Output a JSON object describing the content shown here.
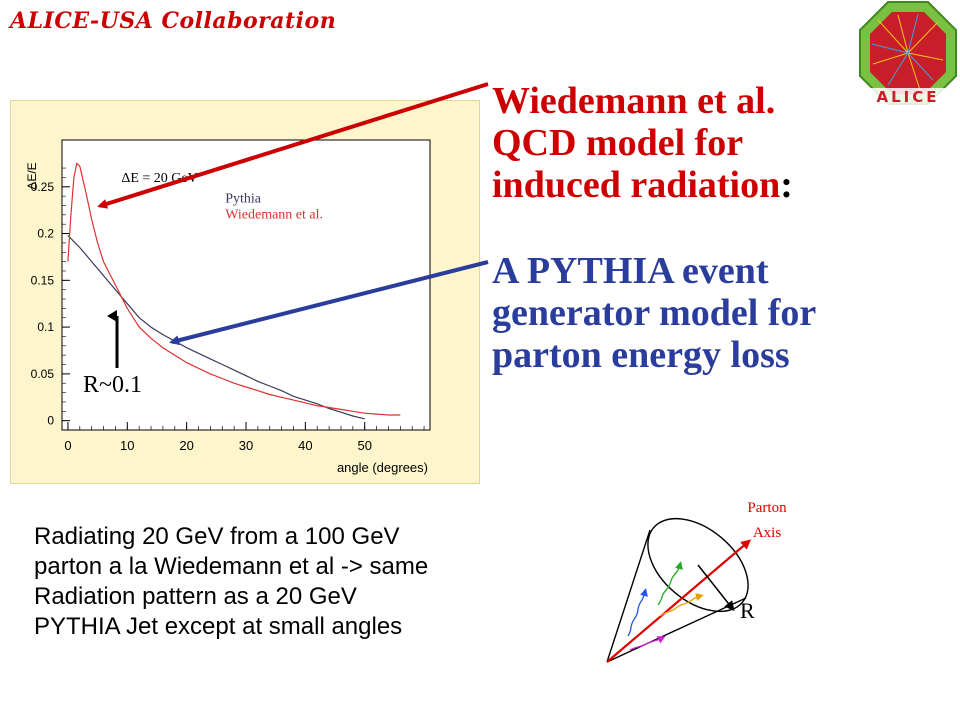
{
  "header": {
    "collaboration": "ALICE-USA Collaboration",
    "logo_text": "ALICE",
    "logo_icon": "alice-logo-icon"
  },
  "right_text": {
    "model1_lines": [
      "Wiedemann et al.",
      "QCD model for",
      "induced radiation"
    ],
    "model1_colon": ":",
    "model2_lines": [
      "A PYTHIA event",
      "generator model for",
      "parton energy loss"
    ]
  },
  "bottom_text": {
    "lines": [
      "Radiating 20 GeV from a 100 GeV",
      "parton a la Wiedemann  et al -> same",
      "Radiation pattern as a  20 GeV",
      "PYTHIA Jet except at small angles"
    ]
  },
  "cone": {
    "axis_label_lines": [
      "Parton",
      "Axis"
    ],
    "radius_label": "R"
  },
  "annotation": {
    "r_label": "R~0.1"
  },
  "colors": {
    "red": "#cc0000",
    "blue": "#2a3c9c",
    "pythia": "#3a3a5a",
    "wiedemann": "#e03030",
    "frame": "#fdf6cc"
  },
  "chart_data": {
    "type": "line",
    "title": "",
    "xlabel": "angle (degrees)",
    "ylabel": "ΔE/E",
    "annotation": "ΔE = 20 GeV",
    "xlim": [
      -1,
      61
    ],
    "ylim": [
      -0.01,
      0.3
    ],
    "x_ticks": [
      0,
      10,
      20,
      30,
      40,
      50
    ],
    "y_ticks": [
      0,
      0.05,
      0.1,
      0.15,
      0.2,
      0.25
    ],
    "legend_placement": "upper-right",
    "series": [
      {
        "name": "Pythia",
        "color": "#3a3a5a",
        "x": [
          0,
          2,
          4,
          6,
          8,
          10,
          12,
          14,
          16,
          18,
          20,
          22,
          24,
          26,
          28,
          30,
          32,
          34,
          36,
          38,
          40,
          42,
          44,
          46,
          48,
          50
        ],
        "y": [
          0.198,
          0.185,
          0.17,
          0.155,
          0.14,
          0.125,
          0.11,
          0.1,
          0.092,
          0.085,
          0.078,
          0.072,
          0.066,
          0.06,
          0.054,
          0.048,
          0.042,
          0.037,
          0.032,
          0.026,
          0.022,
          0.018,
          0.013,
          0.009,
          0.005,
          0.002
        ]
      },
      {
        "name": "Wiedemann et al.",
        "color": "#e03030",
        "x": [
          0,
          0.5,
          1,
          1.5,
          2,
          3,
          4,
          5,
          6,
          8,
          10,
          12,
          14,
          16,
          18,
          20,
          22,
          24,
          26,
          28,
          30,
          32,
          34,
          36,
          38,
          40,
          42,
          44,
          46,
          48,
          50,
          52,
          54,
          56
        ],
        "y": [
          0.17,
          0.22,
          0.26,
          0.275,
          0.272,
          0.245,
          0.215,
          0.19,
          0.17,
          0.145,
          0.12,
          0.1,
          0.088,
          0.078,
          0.07,
          0.062,
          0.056,
          0.05,
          0.045,
          0.04,
          0.036,
          0.032,
          0.028,
          0.025,
          0.022,
          0.019,
          0.016,
          0.014,
          0.012,
          0.01,
          0.008,
          0.007,
          0.006,
          0.006
        ]
      }
    ]
  }
}
